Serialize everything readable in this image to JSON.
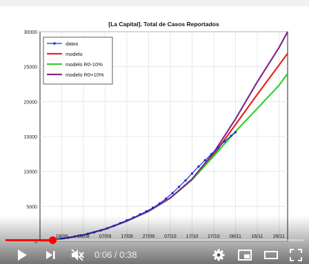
{
  "player": {
    "current_time": "0:06",
    "time_separator": " / ",
    "duration": "0:38",
    "progress": 0.158,
    "accent_color": "#ff0000",
    "icons": [
      "play-icon",
      "next-icon",
      "volume-muted-icon",
      "settings-gear-icon",
      "miniplayer-icon",
      "theater-mode-icon",
      "fullscreen-icon"
    ]
  },
  "chart_data": {
    "type": "line",
    "title": "[La Capital]. Total de Casos Reportados",
    "xlabel": "",
    "ylabel": "",
    "x_tick_labels": [
      "18/08",
      "28/08",
      "07/09",
      "17/09",
      "27/09",
      "07/10",
      "17/10",
      "27/10",
      "06/11",
      "16/11",
      "26/11"
    ],
    "y_tick_labels": [
      "0",
      "5000",
      "10000",
      "15000",
      "20000",
      "25000",
      "30000"
    ],
    "xlim": [
      "2020-08-08",
      "2020-11-30"
    ],
    "ylim": [
      0,
      30000
    ],
    "grid": true,
    "legend_position": "top-left",
    "series": [
      {
        "name": "datos",
        "color": "#1a2fd6",
        "style": "line-markers",
        "x": [
          "2020-08-12",
          "2020-08-15",
          "2020-08-18",
          "2020-08-21",
          "2020-08-24",
          "2020-08-27",
          "2020-08-30",
          "2020-09-02",
          "2020-09-05",
          "2020-09-08",
          "2020-09-11",
          "2020-09-14",
          "2020-09-17",
          "2020-09-20",
          "2020-09-23",
          "2020-09-26",
          "2020-09-29",
          "2020-10-02",
          "2020-10-05",
          "2020-10-08",
          "2020-10-11",
          "2020-10-14",
          "2020-10-17",
          "2020-10-20",
          "2020-10-23",
          "2020-10-26",
          "2020-10-29",
          "2020-11-01",
          "2020-11-04",
          "2020-11-06"
        ],
        "y": [
          150,
          250,
          380,
          520,
          680,
          850,
          1050,
          1280,
          1550,
          1850,
          2200,
          2600,
          3000,
          3400,
          3850,
          4300,
          4800,
          5400,
          6100,
          6900,
          7800,
          8700,
          9700,
          10700,
          11600,
          12500,
          13400,
          14300,
          15100,
          15600
        ]
      },
      {
        "name": "modelo",
        "color": "#e8231c",
        "style": "line",
        "x": [
          "2020-08-08",
          "2020-08-18",
          "2020-08-28",
          "2020-09-07",
          "2020-09-17",
          "2020-09-27",
          "2020-10-07",
          "2020-10-17",
          "2020-10-27",
          "2020-11-06",
          "2020-11-16",
          "2020-11-26",
          "2020-11-30"
        ],
        "y": [
          80,
          350,
          900,
          1750,
          2900,
          4300,
          6200,
          8800,
          12400,
          16700,
          21000,
          25200,
          26900
        ]
      },
      {
        "name": "modelo R0-10%",
        "color": "#2ed12e",
        "style": "line",
        "x": [
          "2020-08-08",
          "2020-08-18",
          "2020-08-28",
          "2020-09-07",
          "2020-09-17",
          "2020-09-27",
          "2020-10-07",
          "2020-10-17",
          "2020-10-27",
          "2020-11-06",
          "2020-11-16",
          "2020-11-26",
          "2020-11-30"
        ],
        "y": [
          80,
          350,
          900,
          1750,
          2900,
          4300,
          6200,
          8800,
          12200,
          15700,
          19000,
          22300,
          24000
        ]
      },
      {
        "name": "modelo R0+10%",
        "color": "#7b2a8c",
        "style": "line",
        "x": [
          "2020-08-08",
          "2020-08-18",
          "2020-08-28",
          "2020-09-07",
          "2020-09-17",
          "2020-09-27",
          "2020-10-07",
          "2020-10-17",
          "2020-10-27",
          "2020-11-06",
          "2020-11-16",
          "2020-11-26",
          "2020-11-30"
        ],
        "y": [
          80,
          350,
          900,
          1750,
          2900,
          4300,
          6200,
          8900,
          12700,
          17500,
          22800,
          27700,
          30000
        ]
      }
    ]
  }
}
